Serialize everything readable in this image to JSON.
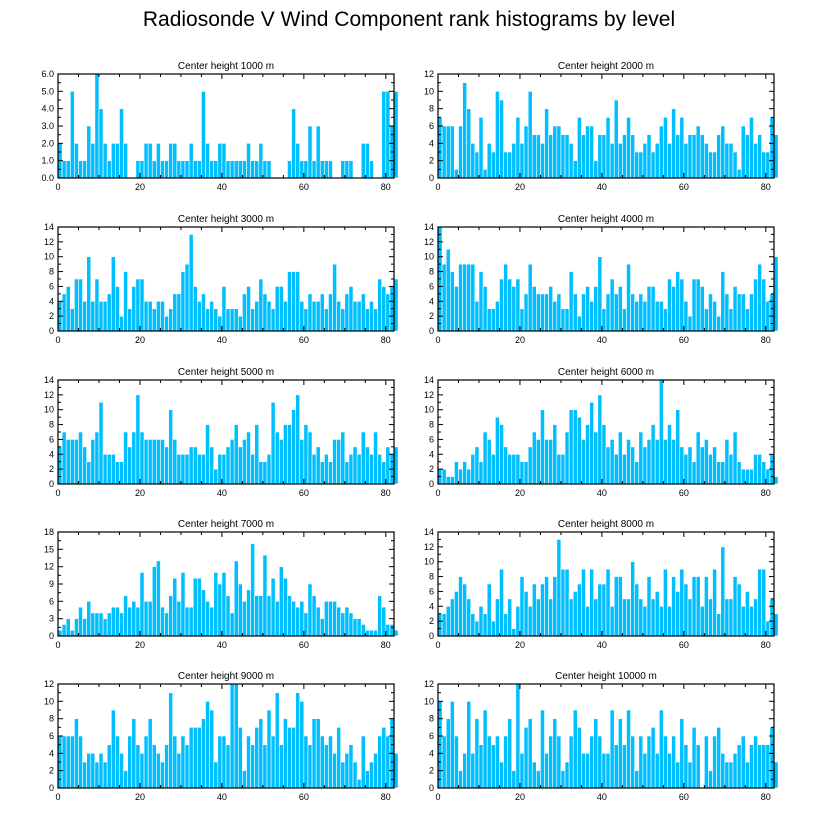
{
  "figure": {
    "title": "Radiosonde V Wind Component rank histograms by level"
  },
  "style": {
    "bar_color": "#00BFFF",
    "bar_edge": "#ffffff",
    "axis_color": "#000000"
  },
  "chart_data": [
    {
      "type": "bar",
      "title": "Center height 1000 m",
      "xlim": [
        0,
        82
      ],
      "ylim": [
        0,
        6
      ],
      "yticks": [
        "0.0",
        "1.0",
        "2.0",
        "3.0",
        "4.0",
        "5.0",
        "6.0"
      ],
      "ytick_values": [
        0,
        1,
        2,
        3,
        4,
        5,
        6
      ],
      "xticks": [
        "0",
        "20",
        "40",
        "60",
        "80"
      ],
      "xtick_values": [
        0,
        20,
        40,
        60,
        80
      ],
      "values": [
        2,
        1,
        1,
        5,
        2,
        1,
        1,
        3,
        2,
        6,
        4,
        2,
        1,
        2,
        2,
        4,
        2,
        0,
        0,
        1,
        1,
        2,
        2,
        1,
        2,
        1,
        1,
        2,
        2,
        1,
        1,
        1,
        2,
        1,
        1,
        5,
        2,
        1,
        1,
        2,
        2,
        1,
        1,
        1,
        1,
        1,
        2,
        1,
        1,
        2,
        1,
        1,
        0,
        0,
        0,
        0,
        1,
        4,
        2,
        1,
        1,
        3,
        1,
        3,
        1,
        1,
        1,
        0,
        0,
        1,
        1,
        1,
        0,
        0,
        2,
        2,
        1,
        0,
        0,
        5,
        5,
        3,
        5
      ]
    },
    {
      "type": "bar",
      "title": "Center height 2000 m",
      "xlim": [
        0,
        82
      ],
      "ylim": [
        0,
        12
      ],
      "yticks": [
        "0",
        "2",
        "4",
        "6",
        "8",
        "10",
        "12"
      ],
      "ytick_values": [
        0,
        2,
        4,
        6,
        8,
        10,
        12
      ],
      "xticks": [
        "0",
        "20",
        "40",
        "60",
        "80"
      ],
      "xtick_values": [
        0,
        20,
        40,
        60,
        80
      ],
      "values": [
        7,
        6,
        6,
        6,
        1,
        6,
        11,
        8,
        4,
        3,
        7,
        1,
        4,
        3,
        10,
        9,
        3,
        3,
        4,
        7,
        4,
        6,
        10,
        5,
        5,
        4,
        8,
        5,
        6,
        6,
        5,
        5,
        4,
        2,
        7,
        5,
        6,
        6,
        2,
        5,
        5,
        7,
        4,
        9,
        4,
        5,
        7,
        5,
        3,
        3,
        4,
        5,
        3,
        4,
        6,
        7,
        4,
        8,
        5,
        7,
        4,
        5,
        5,
        6,
        5,
        4,
        3,
        3,
        5,
        6,
        4,
        4,
        3,
        1,
        6,
        5,
        7,
        4,
        5,
        3,
        3,
        7,
        5
      ]
    },
    {
      "type": "bar",
      "title": "Center height 3000 m",
      "xlim": [
        0,
        82
      ],
      "ylim": [
        0,
        14
      ],
      "yticks": [
        "0",
        "2",
        "4",
        "6",
        "8",
        "10",
        "12",
        "14"
      ],
      "ytick_values": [
        0,
        2,
        4,
        6,
        8,
        10,
        12,
        14
      ],
      "xticks": [
        "0",
        "20",
        "40",
        "60",
        "80"
      ],
      "xtick_values": [
        0,
        20,
        40,
        60,
        80
      ],
      "values": [
        4,
        5,
        6,
        3,
        7,
        7,
        4,
        10,
        4,
        7,
        4,
        4,
        5,
        10,
        6,
        2,
        8,
        3,
        6,
        7,
        7,
        4,
        4,
        3,
        4,
        4,
        2,
        3,
        5,
        5,
        8,
        9,
        13,
        6,
        4,
        5,
        3,
        4,
        3,
        2,
        6,
        3,
        3,
        3,
        2,
        5,
        6,
        3,
        4,
        7,
        5,
        4,
        3,
        6,
        6,
        4,
        8,
        8,
        8,
        4,
        3,
        5,
        4,
        4,
        5,
        3,
        5,
        9,
        4,
        3,
        5,
        6,
        4,
        4,
        5,
        3,
        4,
        3,
        7,
        6,
        5,
        6,
        7
      ]
    },
    {
      "type": "bar",
      "title": "Center height 4000 m",
      "xlim": [
        0,
        82
      ],
      "ylim": [
        0,
        14
      ],
      "yticks": [
        "0",
        "2",
        "4",
        "6",
        "8",
        "10",
        "12",
        "14"
      ],
      "ytick_values": [
        0,
        2,
        4,
        6,
        8,
        10,
        12,
        14
      ],
      "xticks": [
        "0",
        "20",
        "40",
        "60",
        "80"
      ],
      "xtick_values": [
        0,
        20,
        40,
        60,
        80
      ],
      "values": [
        14,
        9,
        11,
        8,
        6,
        9,
        9,
        9,
        9,
        4,
        8,
        6,
        3,
        3,
        4,
        7,
        9,
        7,
        6,
        7,
        3,
        5,
        9,
        6,
        5,
        5,
        5,
        6,
        4,
        5,
        3,
        3,
        8,
        5,
        2,
        5,
        6,
        4,
        6,
        10,
        3,
        5,
        7,
        5,
        6,
        3,
        9,
        5,
        4,
        5,
        4,
        6,
        6,
        4,
        4,
        3,
        7,
        6,
        8,
        7,
        4,
        2,
        7,
        7,
        6,
        3,
        5,
        4,
        2,
        8,
        5,
        3,
        6,
        5,
        5,
        3,
        5,
        7,
        9,
        7,
        4,
        5,
        10
      ]
    },
    {
      "type": "bar",
      "title": "Center height 5000 m",
      "xlim": [
        0,
        82
      ],
      "ylim": [
        0,
        14
      ],
      "yticks": [
        "0",
        "2",
        "4",
        "6",
        "8",
        "10",
        "12",
        "14"
      ],
      "ytick_values": [
        0,
        2,
        4,
        6,
        8,
        10,
        12,
        14
      ],
      "xticks": [
        "0",
        "20",
        "40",
        "60",
        "80"
      ],
      "xtick_values": [
        0,
        20,
        40,
        60,
        80
      ],
      "values": [
        5,
        7,
        6,
        6,
        6,
        7,
        5,
        3,
        6,
        7,
        11,
        4,
        4,
        4,
        3,
        3,
        7,
        5,
        7,
        12,
        7,
        6,
        6,
        6,
        6,
        6,
        5,
        10,
        6,
        4,
        4,
        4,
        5,
        5,
        4,
        4,
        8,
        5,
        2,
        4,
        4,
        5,
        6,
        8,
        5,
        6,
        7,
        4,
        8,
        3,
        3,
        4,
        11,
        7,
        6,
        8,
        8,
        10,
        12,
        6,
        8,
        7,
        4,
        5,
        3,
        4,
        3,
        6,
        6,
        7,
        3,
        4,
        5,
        4,
        7,
        5,
        4,
        7,
        4,
        3,
        5,
        4,
        5
      ]
    },
    {
      "type": "bar",
      "title": "Center height 6000 m",
      "xlim": [
        0,
        82
      ],
      "ylim": [
        0,
        14
      ],
      "yticks": [
        "0",
        "2",
        "4",
        "6",
        "8",
        "10",
        "12",
        "14"
      ],
      "ytick_values": [
        0,
        2,
        4,
        6,
        8,
        10,
        12,
        14
      ],
      "xticks": [
        "0",
        "20",
        "40",
        "60",
        "80"
      ],
      "xtick_values": [
        0,
        20,
        40,
        60,
        80
      ],
      "values": [
        2,
        2,
        1,
        1,
        3,
        2,
        3,
        2,
        4,
        5,
        3,
        7,
        6,
        4,
        9,
        8,
        5,
        4,
        4,
        4,
        3,
        3,
        5,
        7,
        6,
        10,
        6,
        6,
        8,
        4,
        4,
        7,
        10,
        10,
        9,
        6,
        8,
        11,
        7,
        12,
        8,
        5,
        6,
        4,
        7,
        4,
        6,
        5,
        3,
        7,
        5,
        6,
        8,
        6,
        14,
        6,
        8,
        6,
        10,
        5,
        4,
        5,
        3,
        7,
        5,
        6,
        4,
        5,
        3,
        3,
        6,
        4,
        7,
        3,
        2,
        2,
        2,
        4,
        4,
        3,
        2,
        4,
        1
      ]
    },
    {
      "type": "bar",
      "title": "Center height 7000 m",
      "xlim": [
        0,
        82
      ],
      "ylim": [
        0,
        18
      ],
      "yticks": [
        "0",
        "3",
        "6",
        "9",
        "12",
        "15",
        "18"
      ],
      "ytick_values": [
        0,
        3,
        6,
        9,
        12,
        15,
        18
      ],
      "xticks": [
        "0",
        "20",
        "40",
        "60",
        "80"
      ],
      "xtick_values": [
        0,
        20,
        40,
        60,
        80
      ],
      "values": [
        1,
        2,
        3,
        1,
        3,
        5,
        3,
        6,
        4,
        4,
        4,
        3,
        4,
        5,
        5,
        4,
        7,
        5,
        6,
        5,
        11,
        6,
        6,
        12,
        13,
        5,
        4,
        7,
        10,
        6,
        11,
        5,
        5,
        10,
        10,
        8,
        6,
        5,
        11,
        9,
        11,
        7,
        4,
        13,
        9,
        6,
        8,
        16,
        7,
        7,
        14,
        7,
        10,
        6,
        12,
        10,
        7,
        6,
        5,
        6,
        4,
        9,
        7,
        5,
        3,
        6,
        6,
        6,
        5,
        4,
        5,
        4,
        3,
        3,
        2,
        1,
        1,
        1,
        7,
        5,
        2,
        2,
        1
      ]
    },
    {
      "type": "bar",
      "title": "Center height 8000 m",
      "xlim": [
        0,
        82
      ],
      "ylim": [
        0,
        14
      ],
      "yticks": [
        "0",
        "2",
        "4",
        "6",
        "8",
        "10",
        "12",
        "14"
      ],
      "ytick_values": [
        0,
        2,
        4,
        6,
        8,
        10,
        12,
        14
      ],
      "xticks": [
        "0",
        "20",
        "40",
        "60",
        "80"
      ],
      "xtick_values": [
        0,
        20,
        40,
        60,
        80
      ],
      "values": [
        3,
        3,
        4,
        5,
        6,
        8,
        7,
        5,
        3,
        2,
        4,
        3,
        7,
        2,
        5,
        9,
        3,
        5,
        1,
        4,
        8,
        6,
        4,
        7,
        5,
        7,
        8,
        5,
        8,
        13,
        9,
        9,
        5,
        6,
        7,
        9,
        4,
        9,
        5,
        7,
        7,
        9,
        4,
        8,
        8,
        5,
        5,
        10,
        7,
        5,
        4,
        8,
        5,
        6,
        4,
        9,
        4,
        8,
        6,
        9,
        7,
        5,
        8,
        8,
        4,
        8,
        5,
        9,
        3,
        12,
        5,
        5,
        8,
        7,
        4,
        6,
        4,
        5,
        9,
        9,
        2,
        5,
        3
      ]
    },
    {
      "type": "bar",
      "title": "Center height 9000 m",
      "xlim": [
        0,
        82
      ],
      "ylim": [
        0,
        12
      ],
      "yticks": [
        "0",
        "2",
        "4",
        "6",
        "8",
        "10",
        "12"
      ],
      "ytick_values": [
        0,
        2,
        4,
        6,
        8,
        10,
        12
      ],
      "xticks": [
        "0",
        "20",
        "40",
        "60",
        "80"
      ],
      "xtick_values": [
        0,
        20,
        40,
        60,
        80
      ],
      "values": [
        6,
        6,
        6,
        6,
        8,
        6,
        3,
        4,
        4,
        3,
        4,
        3,
        5,
        9,
        6,
        4,
        2,
        6,
        8,
        5,
        4,
        6,
        8,
        5,
        4,
        3,
        5,
        11,
        6,
        4,
        6,
        5,
        7,
        7,
        7,
        8,
        10,
        9,
        3,
        6,
        6,
        5,
        12,
        12,
        7,
        2,
        6,
        5,
        7,
        8,
        5,
        9,
        6,
        11,
        5,
        8,
        7,
        7,
        11,
        10,
        6,
        5,
        8,
        8,
        6,
        5,
        6,
        4,
        7,
        3,
        4,
        5,
        3,
        1,
        6,
        2,
        3,
        4,
        6,
        7,
        6,
        8,
        4
      ]
    },
    {
      "type": "bar",
      "title": "Center height 10000 m",
      "xlim": [
        0,
        82
      ],
      "ylim": [
        0,
        12
      ],
      "yticks": [
        "0",
        "2",
        "4",
        "6",
        "8",
        "10",
        "12"
      ],
      "ytick_values": [
        0,
        2,
        4,
        6,
        8,
        10,
        12
      ],
      "xticks": [
        "0",
        "20",
        "40",
        "60",
        "80"
      ],
      "xtick_values": [
        0,
        20,
        40,
        60,
        80
      ],
      "values": [
        10,
        6,
        8,
        10,
        6,
        2,
        4,
        10,
        4,
        8,
        5,
        9,
        6,
        5,
        6,
        3,
        6,
        8,
        2,
        12,
        4,
        7,
        8,
        3,
        2,
        9,
        4,
        6,
        8,
        6,
        2,
        3,
        6,
        9,
        7,
        4,
        4,
        6,
        8,
        6,
        4,
        4,
        9,
        5,
        8,
        5,
        9,
        6,
        2,
        6,
        4,
        6,
        7,
        4,
        9,
        6,
        4,
        6,
        3,
        8,
        5,
        3,
        7,
        5,
        0,
        6,
        2,
        6,
        7,
        4,
        3,
        3,
        4,
        5,
        6,
        3,
        5,
        6,
        5,
        5,
        5,
        7,
        3
      ]
    }
  ]
}
